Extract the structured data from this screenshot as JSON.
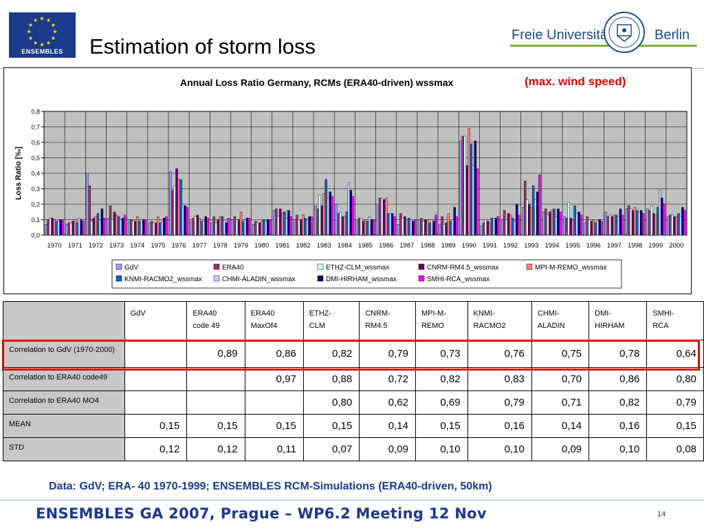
{
  "header": {
    "logo_text": "ENSEMBLES",
    "title": "Estimation of storm loss",
    "university_left": "Freie Universität",
    "university_right": "Berlin"
  },
  "chart_data": {
    "type": "bar",
    "title": "Annual Loss Ratio Germany, RCMs (ERA40-driven) wssmax",
    "annotation": "(max. wind speed)",
    "ylabel": "Loss Ratio [‰]",
    "xlabel": "",
    "ylim": [
      0,
      0.8
    ],
    "yticks": [
      0,
      0.1,
      0.2,
      0.3,
      0.4,
      0.5,
      0.6,
      0.7,
      0.8
    ],
    "ytick_labels": [
      "0,0",
      "0,1",
      "0,2",
      "0,3",
      "0,4",
      "0,5",
      "0,6",
      "0,7",
      "0,8"
    ],
    "grid": true,
    "legend_position": "bottom",
    "categories": [
      "1970",
      "1971",
      "1972",
      "1973",
      "1974",
      "1975",
      "1976",
      "1977",
      "1978",
      "1979",
      "1980",
      "1981",
      "1982",
      "1983",
      "1984",
      "1985",
      "1986",
      "1987",
      "1988",
      "1989",
      "1990",
      "1991",
      "1992",
      "1993",
      "1994",
      "1995",
      "1996",
      "1997",
      "1998",
      "1999",
      "2000"
    ],
    "series": [
      {
        "name": "GdV",
        "color": "#9999ff",
        "values": [
          0.07,
          0.07,
          0.4,
          0.11,
          0.1,
          0.08,
          0.41,
          0.09,
          0.08,
          0.1,
          0.07,
          0.16,
          0.1,
          0.19,
          0.2,
          0.09,
          0.2,
          0.07,
          0.1,
          0.07,
          0.61,
          0.06,
          0.1,
          0.18,
          0.15,
          0.12,
          0.08,
          0.15,
          0.17,
          0.17,
          0.12
        ]
      },
      {
        "name": "ERA40",
        "color": "#993366",
        "values": [
          0.1,
          0.08,
          0.32,
          0.19,
          0.1,
          0.09,
          0.29,
          0.11,
          0.12,
          0.12,
          0.09,
          0.17,
          0.13,
          0.17,
          0.14,
          0.11,
          0.24,
          0.14,
          0.11,
          0.12,
          0.64,
          0.08,
          0.16,
          0.35,
          0.17,
          0.11,
          0.12,
          0.12,
          0.19,
          0.16,
          0.13
        ]
      },
      {
        "name": "ETHZ-CLM_wssmax",
        "color": "#ccffff",
        "values": [
          0.11,
          0.08,
          0.09,
          0.1,
          0.09,
          0.08,
          0.32,
          0.12,
          0.08,
          0.1,
          0.08,
          0.12,
          0.1,
          0.26,
          0.15,
          0.11,
          0.24,
          0.11,
          0.09,
          0.07,
          0.64,
          0.1,
          0.1,
          0.23,
          0.13,
          0.21,
          0.1,
          0.13,
          0.17,
          0.19,
          0.13
        ]
      },
      {
        "name": "CNRM-RM4.5_wssmax",
        "color": "#660066",
        "values": [
          0.11,
          0.09,
          0.11,
          0.15,
          0.09,
          0.08,
          0.43,
          0.13,
          0.1,
          0.1,
          0.08,
          0.17,
          0.1,
          0.19,
          0.12,
          0.09,
          0.23,
          0.12,
          0.1,
          0.08,
          0.45,
          0.09,
          0.14,
          0.2,
          0.15,
          0.11,
          0.09,
          0.12,
          0.16,
          0.14,
          0.12
        ]
      },
      {
        "name": "MPI-M-REMO_wssmax",
        "color": "#ff8080",
        "values": [
          0.1,
          0.1,
          0.12,
          0.13,
          0.12,
          0.12,
          0.36,
          0.11,
          0.12,
          0.15,
          0.09,
          0.14,
          0.13,
          0.27,
          0.12,
          0.1,
          0.24,
          0.1,
          0.1,
          0.14,
          0.69,
          0.08,
          0.13,
          0.18,
          0.16,
          0.1,
          0.1,
          0.13,
          0.18,
          0.13,
          0.12
        ]
      },
      {
        "name": "KNMI-RACMO2_wssmax",
        "color": "#0066cc",
        "values": [
          0.09,
          0.08,
          0.14,
          0.12,
          0.09,
          0.08,
          0.36,
          0.09,
          0.12,
          0.09,
          0.1,
          0.15,
          0.11,
          0.36,
          0.15,
          0.09,
          0.14,
          0.11,
          0.08,
          0.09,
          0.59,
          0.11,
          0.11,
          0.32,
          0.17,
          0.19,
          0.08,
          0.13,
          0.16,
          0.18,
          0.14
        ]
      },
      {
        "name": "CHMI-ALADIN_wssmax",
        "color": "#ccccff",
        "values": [
          0.09,
          0.11,
          0.1,
          0.1,
          0.1,
          0.09,
          0.2,
          0.09,
          0.1,
          0.1,
          0.09,
          0.11,
          0.1,
          0.24,
          0.34,
          0.12,
          0.14,
          0.1,
          0.1,
          0.1,
          0.45,
          0.11,
          0.09,
          0.23,
          0.12,
          0.14,
          0.09,
          0.12,
          0.15,
          0.29,
          0.12
        ]
      },
      {
        "name": "DMI-HIRHAM_wssmax",
        "color": "#000080",
        "values": [
          0.1,
          0.1,
          0.17,
          0.11,
          0.1,
          0.11,
          0.19,
          0.12,
          0.08,
          0.11,
          0.1,
          0.16,
          0.12,
          0.28,
          0.29,
          0.1,
          0.14,
          0.09,
          0.09,
          0.18,
          0.61,
          0.11,
          0.2,
          0.28,
          0.17,
          0.15,
          0.1,
          0.17,
          0.16,
          0.24,
          0.18
        ]
      },
      {
        "name": "SMHI-RCA_wssmax",
        "color": "#ff00ff",
        "values": [
          0.1,
          0.09,
          0.11,
          0.13,
          0.1,
          0.12,
          0.18,
          0.11,
          0.11,
          0.11,
          0.1,
          0.12,
          0.12,
          0.25,
          0.25,
          0.1,
          0.12,
          0.1,
          0.13,
          0.12,
          0.43,
          0.12,
          0.13,
          0.39,
          0.15,
          0.13,
          0.09,
          0.13,
          0.14,
          0.2,
          0.16
        ]
      }
    ]
  },
  "table": {
    "headers": [
      [
        "GdV"
      ],
      [
        "ERA40",
        "code 49"
      ],
      [
        "ERA40",
        "MaxOf4"
      ],
      [
        "ETHZ-",
        "CLM"
      ],
      [
        "CNRM-",
        "RM4.5"
      ],
      [
        "MPI-M-",
        "REMO"
      ],
      [
        "KNMI-",
        "RACMO2"
      ],
      [
        "CHMI-",
        "ALADIN"
      ],
      [
        "DMI-",
        "HIRHAM"
      ],
      [
        "SMHI-",
        "RCA"
      ]
    ],
    "rows": [
      {
        "label": "Correlation to GdV (1970-2000)",
        "values": [
          "",
          "0,89",
          "0,86",
          "0,82",
          "0,79",
          "0,73",
          "0,76",
          "0,75",
          "0,78",
          "0,64"
        ]
      },
      {
        "label": "Correlation to ERA40 code49",
        "values": [
          "",
          "",
          "0,97",
          "0,88",
          "0,72",
          "0,82",
          "0,83",
          "0,70",
          "0,86",
          "0,80"
        ]
      },
      {
        "label": "Correlation to ERA40 MO4",
        "values": [
          "",
          "",
          "",
          "0,80",
          "0,62",
          "0,69",
          "0,79",
          "0,71",
          "0,82",
          "0,79"
        ]
      },
      {
        "label": "MEAN",
        "values": [
          "0,15",
          "0,15",
          "0,15",
          "0,15",
          "0,14",
          "0,15",
          "0,16",
          "0,14",
          "0,16",
          "0,15"
        ]
      },
      {
        "label": "STD",
        "values": [
          "0,12",
          "0,12",
          "0,11",
          "0,07",
          "0,09",
          "0,10",
          "0,10",
          "0,09",
          "0,10",
          "0,08"
        ]
      }
    ]
  },
  "source_note": "Data: GdV; ERA- 40 1970-1999; ENSEMBLES RCM-Simulations (ERA40-driven, 50km)",
  "footer": {
    "text": "ENSEMBLES GA 2007, Prague – WP6.2 Meeting 12 Nov",
    "page_number": "14"
  }
}
